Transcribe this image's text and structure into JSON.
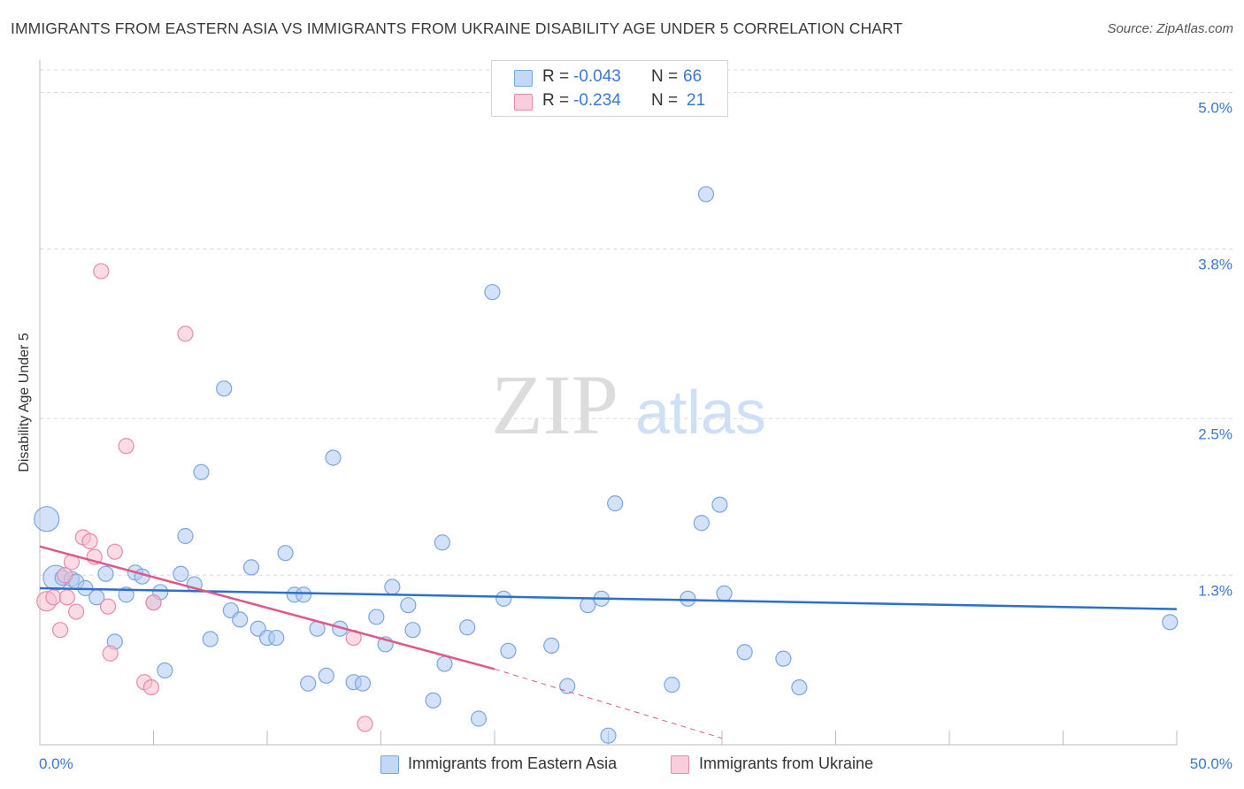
{
  "title": "IMMIGRANTS FROM EASTERN ASIA VS IMMIGRANTS FROM UKRAINE DISABILITY AGE UNDER 5 CORRELATION CHART",
  "source": "Source: ZipAtlas.com",
  "watermark": {
    "zip": "ZIP",
    "atlas": "atlas"
  },
  "legend": {
    "rows": [
      {
        "r_label": "R =",
        "r_value": "-0.043",
        "n_label": "N =",
        "n_value": "66"
      },
      {
        "r_label": "R =",
        "r_value": "-0.234",
        "n_label": "N =",
        "n_value": "21"
      }
    ]
  },
  "colors": {
    "blue_fill": "#aecbf2",
    "blue_stroke": "#7aa6e0",
    "blue_line": "#2b6fcf",
    "pink_fill": "#f7bfd0",
    "pink_stroke": "#e88aa8",
    "pink_line": "#e0588a",
    "tick_label": "#3a78d0",
    "grid": "#d8d8d8"
  },
  "chart_data": {
    "type": "scatter",
    "title": "IMMIGRANTS FROM EASTERN ASIA VS IMMIGRANTS FROM UKRAINE DISABILITY AGE UNDER 5 CORRELATION CHART",
    "xlabel": "",
    "ylabel": "Disability Age Under 5",
    "xlim": [
      0,
      50
    ],
    "ylim": [
      0,
      5.2
    ],
    "x_tick_labels": [
      "0.0%",
      "50.0%"
    ],
    "y_ticks": [
      {
        "value": 1.3,
        "label": "1.3%"
      },
      {
        "value": 2.5,
        "label": "2.5%"
      },
      {
        "value": 3.8,
        "label": "3.8%"
      },
      {
        "value": 5.0,
        "label": "5.0%"
      }
    ],
    "series": [
      {
        "name": "Immigrants from Eastern Asia",
        "color": "#aecbf2",
        "trend": {
          "x": [
            0,
            50
          ],
          "y": [
            1.2,
            1.04
          ]
        },
        "points": [
          {
            "x": 0.3,
            "y": 1.73,
            "s": 3
          },
          {
            "x": 0.7,
            "y": 1.28,
            "s": 3
          },
          {
            "x": 1.0,
            "y": 1.28
          },
          {
            "x": 1.4,
            "y": 1.27
          },
          {
            "x": 1.6,
            "y": 1.25
          },
          {
            "x": 2.0,
            "y": 1.2
          },
          {
            "x": 2.5,
            "y": 1.13
          },
          {
            "x": 2.9,
            "y": 1.31
          },
          {
            "x": 3.3,
            "y": 0.79
          },
          {
            "x": 3.8,
            "y": 1.15
          },
          {
            "x": 4.2,
            "y": 1.32
          },
          {
            "x": 4.5,
            "y": 1.29
          },
          {
            "x": 5.0,
            "y": 1.09
          },
          {
            "x": 5.3,
            "y": 1.17
          },
          {
            "x": 5.5,
            "y": 0.57
          },
          {
            "x": 6.2,
            "y": 1.31
          },
          {
            "x": 6.4,
            "y": 1.6
          },
          {
            "x": 6.8,
            "y": 1.23
          },
          {
            "x": 7.1,
            "y": 2.09
          },
          {
            "x": 7.5,
            "y": 0.81
          },
          {
            "x": 8.1,
            "y": 2.73
          },
          {
            "x": 8.4,
            "y": 1.03
          },
          {
            "x": 8.8,
            "y": 0.96
          },
          {
            "x": 9.3,
            "y": 1.36
          },
          {
            "x": 9.6,
            "y": 0.89
          },
          {
            "x": 10.0,
            "y": 0.82
          },
          {
            "x": 10.4,
            "y": 0.82
          },
          {
            "x": 10.8,
            "y": 1.47
          },
          {
            "x": 11.2,
            "y": 1.15
          },
          {
            "x": 11.6,
            "y": 1.15
          },
          {
            "x": 11.8,
            "y": 0.47
          },
          {
            "x": 12.2,
            "y": 0.89
          },
          {
            "x": 12.6,
            "y": 0.53
          },
          {
            "x": 12.9,
            "y": 2.2
          },
          {
            "x": 13.2,
            "y": 0.89
          },
          {
            "x": 13.8,
            "y": 0.48
          },
          {
            "x": 14.2,
            "y": 0.47
          },
          {
            "x": 14.8,
            "y": 0.98
          },
          {
            "x": 15.2,
            "y": 0.77
          },
          {
            "x": 15.5,
            "y": 1.21
          },
          {
            "x": 16.2,
            "y": 1.07
          },
          {
            "x": 16.4,
            "y": 0.88
          },
          {
            "x": 17.3,
            "y": 0.34
          },
          {
            "x": 17.8,
            "y": 0.62
          },
          {
            "x": 17.7,
            "y": 1.55
          },
          {
            "x": 18.8,
            "y": 0.9
          },
          {
            "x": 19.3,
            "y": 0.2
          },
          {
            "x": 19.9,
            "y": 3.47
          },
          {
            "x": 20.4,
            "y": 1.12
          },
          {
            "x": 20.6,
            "y": 0.72
          },
          {
            "x": 22.5,
            "y": 0.76
          },
          {
            "x": 23.2,
            "y": 0.45
          },
          {
            "x": 24.1,
            "y": 1.07
          },
          {
            "x": 24.7,
            "y": 1.12
          },
          {
            "x": 25.0,
            "y": 0.07
          },
          {
            "x": 25.3,
            "y": 1.85
          },
          {
            "x": 27.8,
            "y": 0.46
          },
          {
            "x": 28.5,
            "y": 1.12
          },
          {
            "x": 29.1,
            "y": 1.7
          },
          {
            "x": 29.3,
            "y": 4.22
          },
          {
            "x": 29.9,
            "y": 1.84
          },
          {
            "x": 30.1,
            "y": 1.16
          },
          {
            "x": 31.0,
            "y": 0.71
          },
          {
            "x": 32.7,
            "y": 0.66
          },
          {
            "x": 33.4,
            "y": 0.44
          },
          {
            "x": 49.7,
            "y": 0.94
          }
        ]
      },
      {
        "name": "Immigrants from Ukraine",
        "color": "#f7bfd0",
        "trend": {
          "x": [
            0,
            20
          ],
          "y": [
            1.52,
            0.58
          ]
        },
        "trend_dashed": {
          "x": [
            20,
            30
          ],
          "y": [
            0.58,
            0.05
          ]
        },
        "points": [
          {
            "x": 0.3,
            "y": 1.1,
            "s": 2
          },
          {
            "x": 0.6,
            "y": 1.13
          },
          {
            "x": 0.9,
            "y": 0.88
          },
          {
            "x": 1.1,
            "y": 1.3
          },
          {
            "x": 1.2,
            "y": 1.13
          },
          {
            "x": 1.4,
            "y": 1.4
          },
          {
            "x": 1.6,
            "y": 1.02
          },
          {
            "x": 1.9,
            "y": 1.59
          },
          {
            "x": 2.2,
            "y": 1.56
          },
          {
            "x": 2.4,
            "y": 1.44
          },
          {
            "x": 2.7,
            "y": 3.63
          },
          {
            "x": 3.0,
            "y": 1.06
          },
          {
            "x": 3.1,
            "y": 0.7
          },
          {
            "x": 3.3,
            "y": 1.48
          },
          {
            "x": 3.8,
            "y": 2.29
          },
          {
            "x": 4.6,
            "y": 0.48
          },
          {
            "x": 4.9,
            "y": 0.44
          },
          {
            "x": 5.0,
            "y": 1.09
          },
          {
            "x": 6.4,
            "y": 3.15
          },
          {
            "x": 13.8,
            "y": 0.82
          },
          {
            "x": 14.3,
            "y": 0.16
          }
        ]
      }
    ]
  },
  "bottom_legend": [
    {
      "label": "Immigrants from Eastern Asia"
    },
    {
      "label": "Immigrants from Ukraine"
    }
  ]
}
